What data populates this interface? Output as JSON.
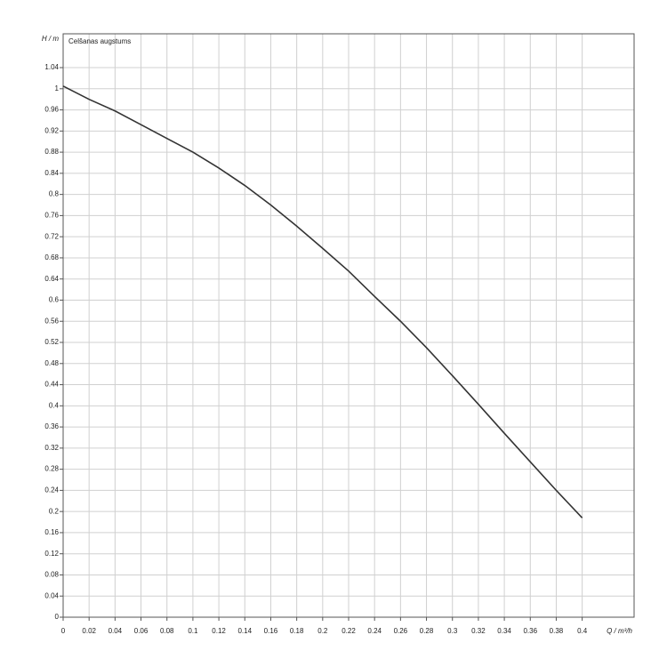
{
  "chart_data": {
    "type": "line",
    "x_label": "Q / m³/h",
    "y_label": "H / m",
    "x": [
      0,
      0.02,
      0.04,
      0.06,
      0.08,
      0.1,
      0.12,
      0.14,
      0.16,
      0.18,
      0.2,
      0.22,
      0.24,
      0.26,
      0.28,
      0.3,
      0.32,
      0.34,
      0.36,
      0.38,
      0.4
    ],
    "series": [
      {
        "name": "Celšanas augstums",
        "color": "#333333",
        "values": [
          1.005,
          0.98,
          0.958,
          0.932,
          0.906,
          0.88,
          0.85,
          0.817,
          0.78,
          0.74,
          0.698,
          0.655,
          0.607,
          0.56,
          0.51,
          0.457,
          0.403,
          0.348,
          0.294,
          0.24,
          0.188
        ]
      }
    ],
    "xlim": [
      0,
      0.44
    ],
    "ylim": [
      0,
      1.104
    ],
    "xticks": [
      0,
      0.02,
      0.04,
      0.06,
      0.08,
      0.1,
      0.12,
      0.14,
      0.16,
      0.18,
      0.2,
      0.22,
      0.24,
      0.26,
      0.28,
      0.3,
      0.32,
      0.34,
      0.36,
      0.38,
      0.4
    ],
    "yticks": [
      0,
      0.04,
      0.08,
      0.12,
      0.16,
      0.2,
      0.24,
      0.28,
      0.32,
      0.36,
      0.4,
      0.44,
      0.48,
      0.52,
      0.56,
      0.6,
      0.64,
      0.68,
      0.72,
      0.76,
      0.8,
      0.84,
      0.88,
      0.92,
      0.96,
      1,
      1.04
    ],
    "grid": true,
    "legend": "top-left"
  }
}
